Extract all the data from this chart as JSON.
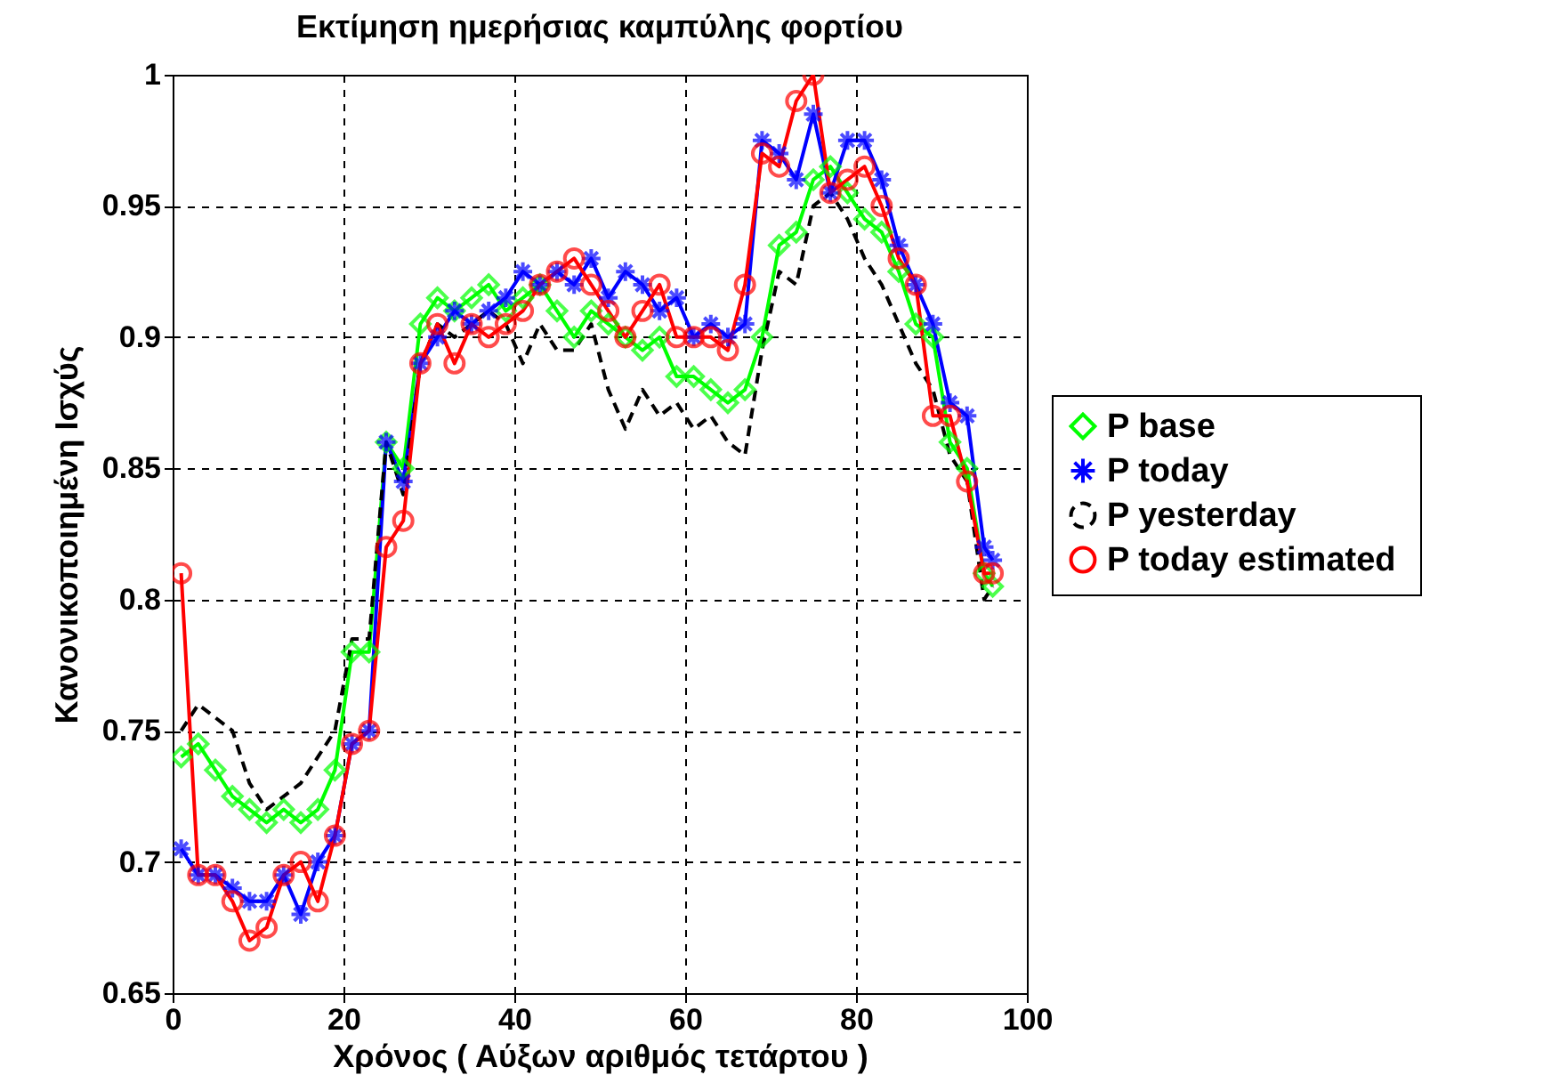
{
  "chart_data": {
    "type": "line",
    "title": "Εκτίμηση ημερήσιας καμπύλης φορτίου",
    "xlabel": "Χρόνος ( Αύξων αριθμός τετάρτου )",
    "ylabel": "Κανονικοποιημένη Ισχύς",
    "x": [
      1,
      3,
      5,
      7,
      9,
      11,
      13,
      15,
      17,
      19,
      21,
      23,
      25,
      27,
      29,
      31,
      33,
      35,
      37,
      39,
      41,
      43,
      45,
      47,
      49,
      51,
      53,
      55,
      57,
      59,
      61,
      63,
      65,
      67,
      69,
      71,
      73,
      75,
      77,
      79,
      81,
      83,
      85,
      87,
      89,
      91,
      93,
      95,
      96
    ],
    "series": [
      {
        "name": "P base",
        "color": "#00ff00",
        "marker": "diamond",
        "line_style": "solid",
        "values": [
          0.74,
          0.745,
          0.735,
          0.725,
          0.72,
          0.715,
          0.72,
          0.715,
          0.72,
          0.735,
          0.78,
          0.78,
          0.86,
          0.85,
          0.905,
          0.915,
          0.91,
          0.915,
          0.92,
          0.91,
          0.915,
          0.92,
          0.91,
          0.9,
          0.91,
          0.905,
          0.9,
          0.895,
          0.9,
          0.885,
          0.885,
          0.88,
          0.875,
          0.88,
          0.9,
          0.935,
          0.94,
          0.96,
          0.965,
          0.955,
          0.945,
          0.94,
          0.925,
          0.905,
          0.9,
          0.86,
          0.85,
          0.81,
          0.805
        ]
      },
      {
        "name": "P today",
        "color": "#0000ff",
        "marker": "cross",
        "line_style": "solid",
        "values": [
          0.705,
          0.695,
          0.695,
          0.69,
          0.685,
          0.685,
          0.695,
          0.68,
          0.7,
          0.71,
          0.745,
          0.75,
          0.86,
          0.845,
          0.89,
          0.9,
          0.91,
          0.905,
          0.91,
          0.915,
          0.925,
          0.92,
          0.925,
          0.92,
          0.93,
          0.915,
          0.925,
          0.92,
          0.91,
          0.915,
          0.9,
          0.905,
          0.9,
          0.905,
          0.975,
          0.97,
          0.96,
          0.985,
          0.955,
          0.975,
          0.975,
          0.96,
          0.935,
          0.92,
          0.905,
          0.875,
          0.87,
          0.82,
          0.815
        ]
      },
      {
        "name": "P yesterday",
        "color": "#000000",
        "marker": "none",
        "line_style": "dashed",
        "values": [
          0.75,
          0.76,
          0.755,
          0.75,
          0.73,
          0.72,
          0.725,
          0.73,
          0.74,
          0.75,
          0.785,
          0.785,
          0.86,
          0.84,
          0.89,
          0.905,
          0.9,
          0.905,
          0.91,
          0.905,
          0.89,
          0.905,
          0.895,
          0.895,
          0.905,
          0.88,
          0.865,
          0.88,
          0.87,
          0.875,
          0.865,
          0.87,
          0.86,
          0.855,
          0.895,
          0.925,
          0.92,
          0.95,
          0.955,
          0.945,
          0.93,
          0.92,
          0.905,
          0.89,
          0.88,
          0.855,
          0.845,
          0.8,
          0.805
        ]
      },
      {
        "name": "P  today estimated",
        "color": "#ff0000",
        "marker": "circle",
        "line_style": "solid",
        "values": [
          0.81,
          0.695,
          0.695,
          0.685,
          0.67,
          0.675,
          0.695,
          0.7,
          0.685,
          0.71,
          0.745,
          0.75,
          0.82,
          0.83,
          0.89,
          0.905,
          0.89,
          0.905,
          0.9,
          0.905,
          0.91,
          0.92,
          0.925,
          0.93,
          0.92,
          0.91,
          0.9,
          0.91,
          0.92,
          0.9,
          0.9,
          0.9,
          0.895,
          0.92,
          0.97,
          0.965,
          0.99,
          1.0,
          0.955,
          0.96,
          0.965,
          0.95,
          0.93,
          0.92,
          0.87,
          0.87,
          0.845,
          0.81,
          0.81
        ]
      }
    ],
    "xlim": [
      0,
      100
    ],
    "xticks": [
      0,
      20,
      40,
      60,
      80,
      100
    ],
    "ylim": [
      0.65,
      1
    ],
    "yticks": [
      0.65,
      0.7,
      0.75,
      0.8,
      0.85,
      0.9,
      0.95,
      1
    ],
    "grid": true,
    "legend": "right"
  }
}
